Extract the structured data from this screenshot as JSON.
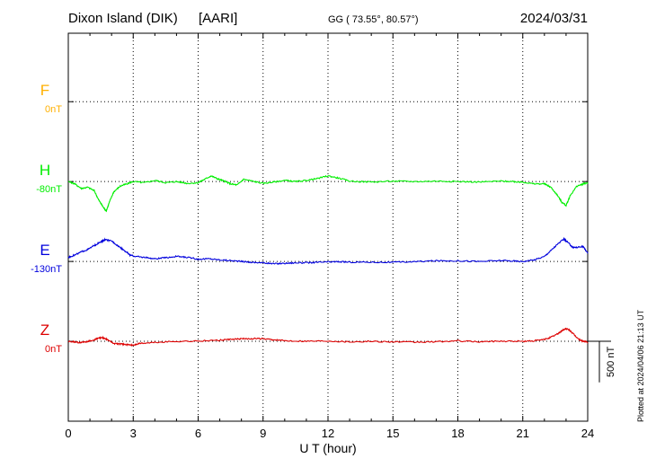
{
  "header": {
    "station": "Dixon Island (DIK)",
    "institute": "[AARI]",
    "coords": "GG ( 73.55°,  80.57°)",
    "date": "2024/03/31"
  },
  "footer": {
    "plotted_at": "Plotted at 2024/04/06 21:13 UT"
  },
  "scale": {
    "label": "500 nT",
    "value_nT": 500
  },
  "chart_data": {
    "type": "line",
    "title": "Dixon Island (DIK)  [AARI]",
    "xlabel": "U T (hour)",
    "ylabel": "",
    "xlim": [
      0,
      24
    ],
    "x_ticks": [
      0,
      3,
      6,
      9,
      12,
      15,
      18,
      21,
      24
    ],
    "x_tick_labels": [
      "0",
      "3",
      "6",
      "9",
      "12",
      "15",
      "18",
      "21",
      "24"
    ],
    "grid": true,
    "y_range_nT": [
      0,
      1700
    ],
    "series": [
      {
        "name": "F",
        "color": "#ffb000",
        "baseline_label": "0nT",
        "baseline_nT": 1400,
        "no_data": true,
        "x": [],
        "y": []
      },
      {
        "name": "H",
        "color": "#00ee00",
        "baseline_label": "-80nT",
        "baseline_nT": 1050,
        "x": [
          0,
          0.3,
          0.6,
          0.9,
          1.2,
          1.4,
          1.6,
          1.75,
          1.9,
          2.1,
          2.4,
          2.7,
          3.0,
          3.5,
          4.0,
          4.5,
          5.0,
          5.5,
          6.0,
          6.3,
          6.6,
          6.9,
          7.2,
          7.5,
          7.8,
          8.1,
          8.5,
          9.0,
          9.5,
          10.0,
          10.5,
          11.0,
          11.5,
          12.0,
          12.5,
          13.0,
          14.0,
          15.0,
          16.0,
          17.0,
          18.0,
          19.0,
          20.0,
          20.5,
          21.0,
          21.5,
          22.0,
          22.3,
          22.6,
          22.8,
          23.0,
          23.2,
          23.5,
          23.8,
          24.0
        ],
        "y": [
          1050,
          1040,
          1020,
          1025,
          1010,
          970,
          940,
          920,
          960,
          1005,
          1030,
          1040,
          1050,
          1045,
          1055,
          1045,
          1050,
          1042,
          1045,
          1060,
          1075,
          1062,
          1052,
          1040,
          1035,
          1060,
          1052,
          1042,
          1048,
          1055,
          1050,
          1055,
          1063,
          1075,
          1065,
          1052,
          1048,
          1052,
          1050,
          1052,
          1050,
          1048,
          1052,
          1050,
          1048,
          1040,
          1040,
          1025,
          990,
          960,
          945,
          990,
          1030,
          1040,
          1045
        ]
      },
      {
        "name": "E",
        "color": "#0000dd",
        "baseline_label": "-130nT",
        "baseline_nT": 700,
        "x": [
          0,
          0.3,
          0.6,
          0.9,
          1.2,
          1.5,
          1.7,
          2.0,
          2.3,
          2.6,
          2.85,
          3.1,
          3.5,
          4.0,
          4.5,
          5.0,
          5.5,
          6.0,
          6.5,
          7.0,
          7.5,
          8.0,
          8.5,
          9.0,
          9.5,
          10.0,
          10.5,
          11.0,
          11.5,
          12.0,
          12.5,
          13.0,
          14.0,
          15.0,
          16.0,
          17.0,
          18.0,
          19.0,
          20.0,
          20.5,
          21.0,
          21.5,
          22.0,
          22.3,
          22.6,
          22.9,
          23.1,
          23.3,
          23.5,
          23.8,
          24.0
        ],
        "y": [
          718,
          728,
          742,
          752,
          770,
          785,
          795,
          790,
          768,
          748,
          728,
          722,
          718,
          712,
          716,
          722,
          718,
          710,
          712,
          707,
          704,
          700,
          696,
          694,
          690,
          692,
          694,
          694,
          696,
          698,
          699,
          697,
          697,
          696,
          699,
          703,
          703,
          700,
          704,
          702,
          700,
          706,
          722,
          748,
          775,
          798,
          782,
          762,
          762,
          765,
          735
        ]
      },
      {
        "name": "Z",
        "color": "#dd0000",
        "baseline_label": "0nT",
        "baseline_nT": 350,
        "x": [
          0,
          0.3,
          0.6,
          0.9,
          1.2,
          1.4,
          1.6,
          1.8,
          2.1,
          2.4,
          2.7,
          3.0,
          3.3,
          4.0,
          5.0,
          6.0,
          7.0,
          7.5,
          8.0,
          8.5,
          9.0,
          9.5,
          10.0,
          11.0,
          12.0,
          13.0,
          14.0,
          15.0,
          16.0,
          17.0,
          18.0,
          19.0,
          20.0,
          21.0,
          21.5,
          22.0,
          22.3,
          22.6,
          22.8,
          23.0,
          23.2,
          23.4,
          23.6,
          23.8,
          24.0
        ],
        "y": [
          350,
          347,
          344,
          350,
          356,
          364,
          366,
          358,
          341,
          338,
          336,
          333,
          341,
          345,
          350,
          351,
          355,
          358,
          361,
          362,
          361,
          356,
          353,
          351,
          352,
          348,
          350,
          348,
          346,
          348,
          352,
          348,
          351,
          350,
          352,
          358,
          368,
          382,
          396,
          406,
          396,
          376,
          358,
          350,
          346
        ]
      }
    ]
  }
}
